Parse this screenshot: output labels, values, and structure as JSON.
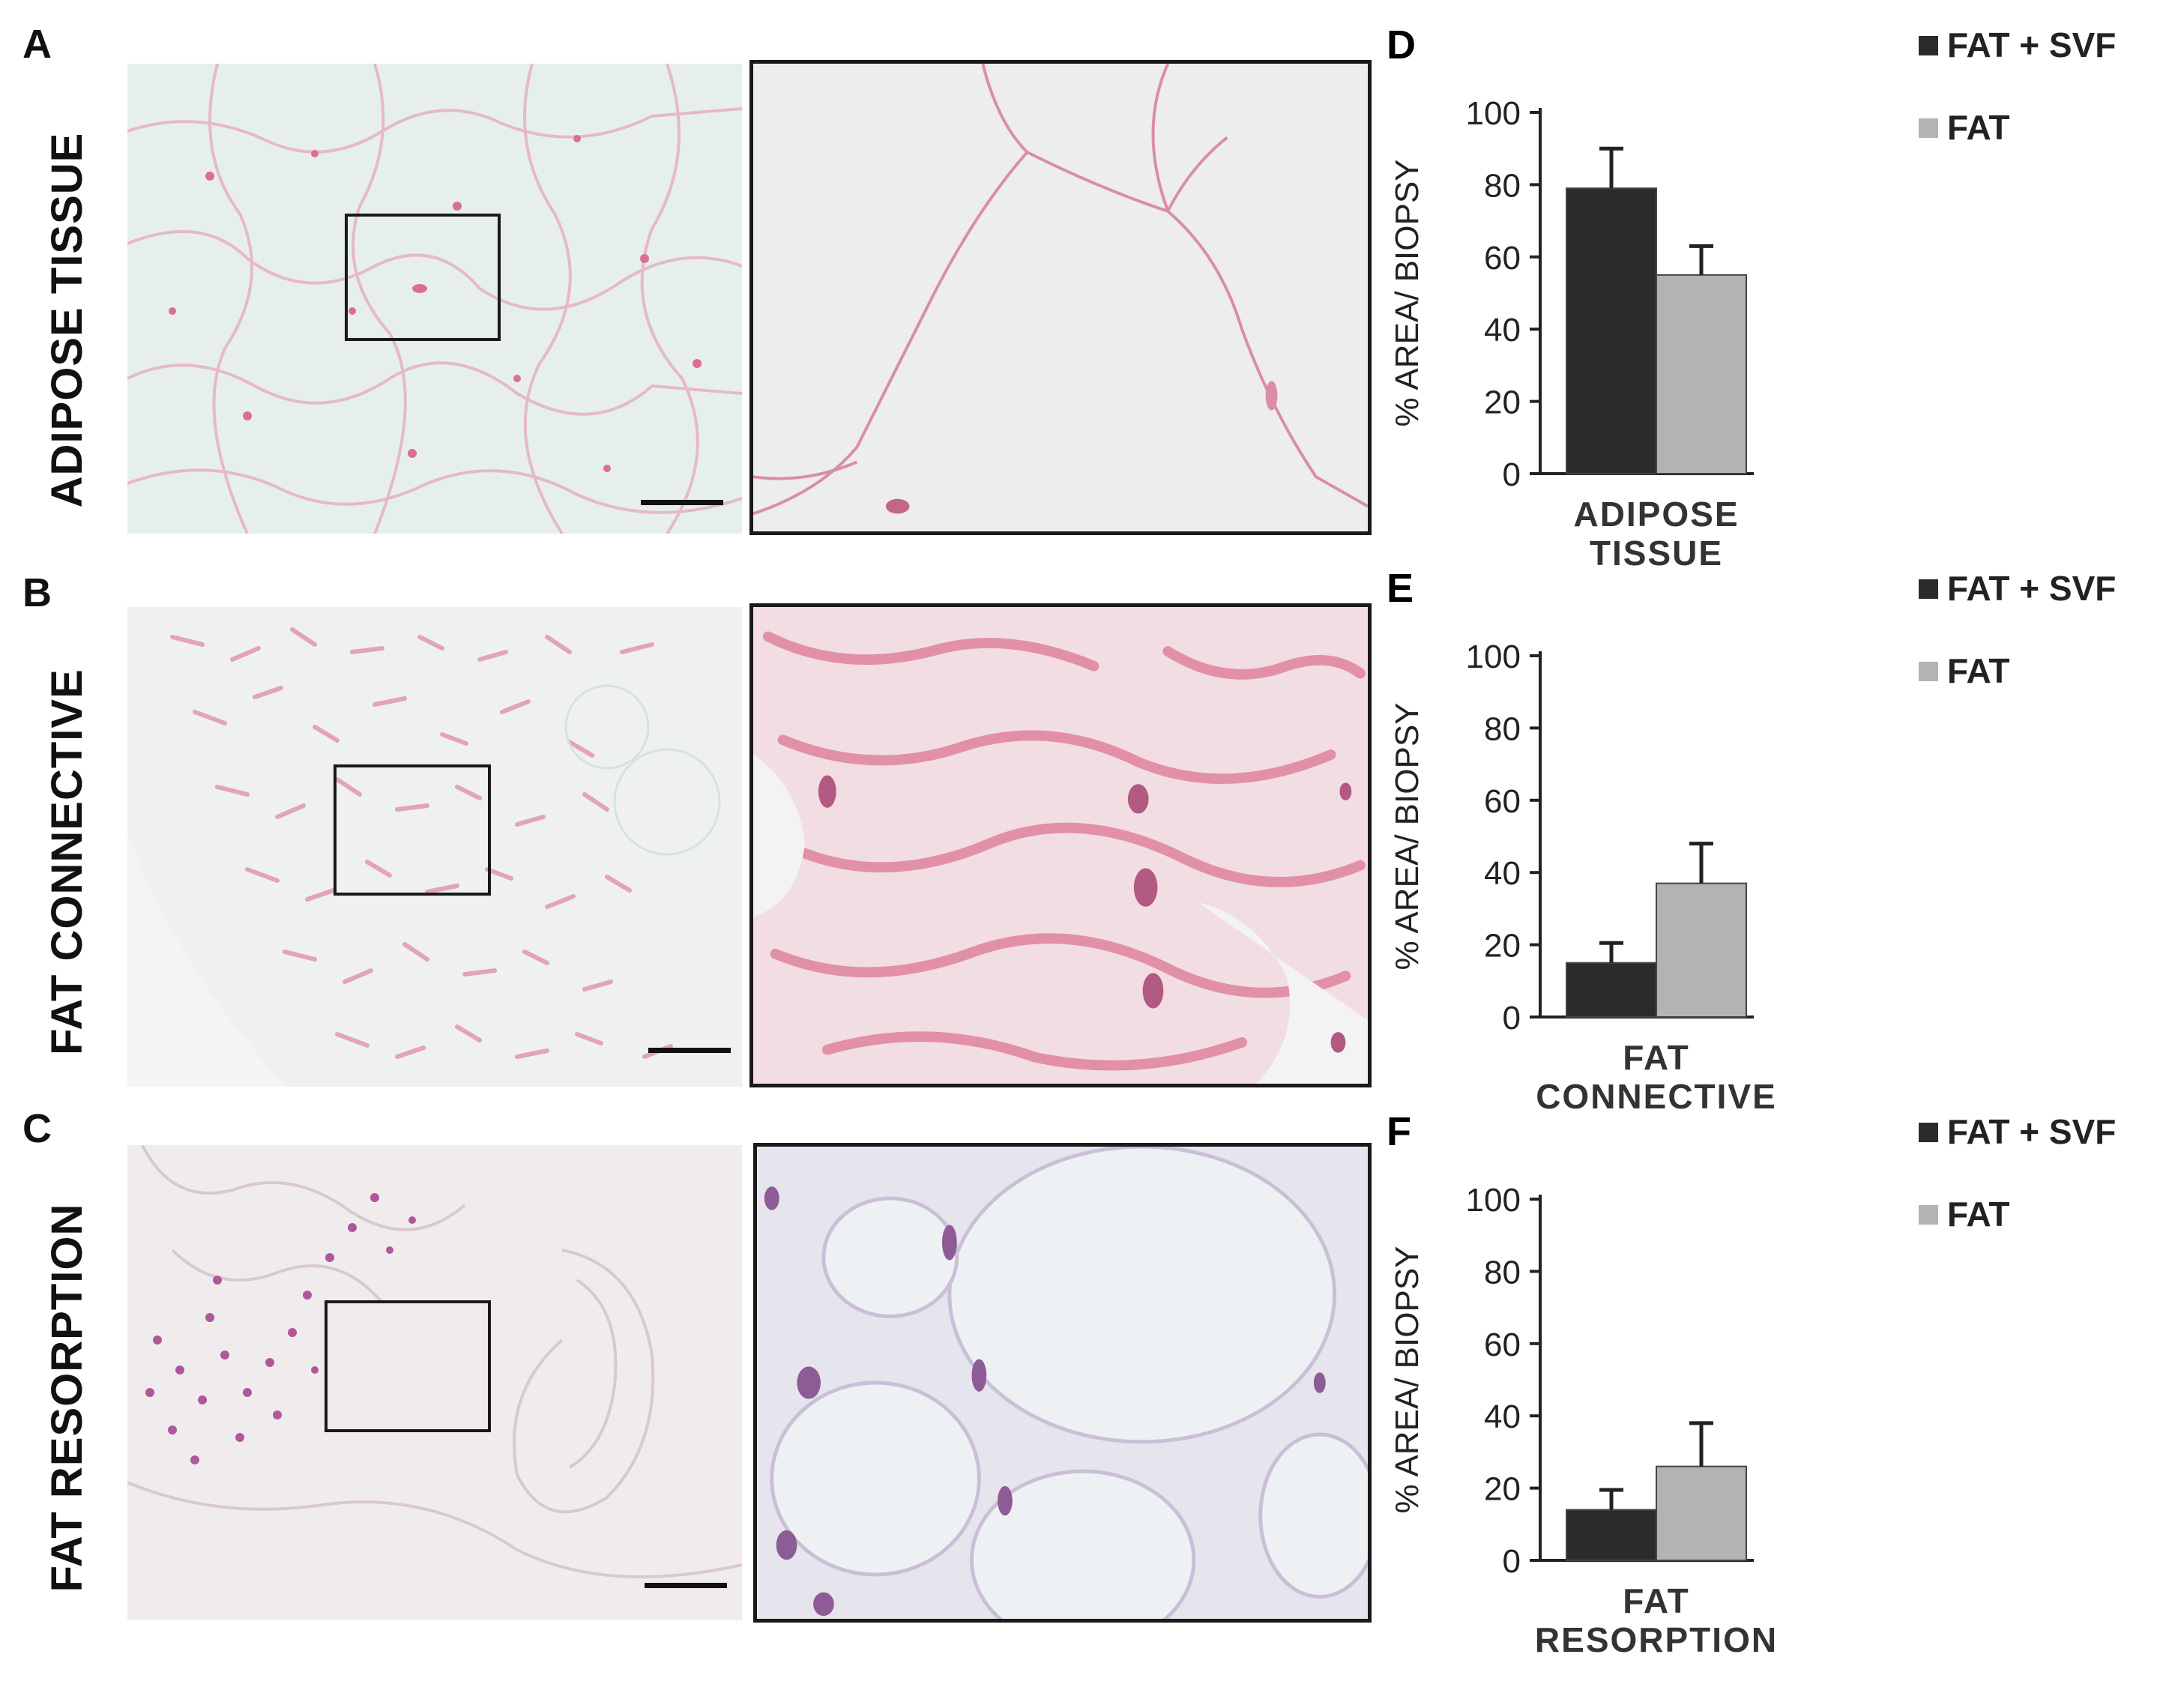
{
  "rows": [
    {
      "letter": "A",
      "label": "ADIPOSE TISSUE"
    },
    {
      "letter": "B",
      "label": "FAT CONNECTIVE"
    },
    {
      "letter": "C",
      "label": "FAT RESORPTION"
    }
  ],
  "chart_data": [
    {
      "letter": "D",
      "type": "bar",
      "categories": [
        "ADIPOSE TISSUE"
      ],
      "category_lines": [
        "ADIPOSE",
        "TISSUE"
      ],
      "series": [
        {
          "name": "FAT + SVF",
          "values": [
            79
          ],
          "errors": [
            11
          ],
          "color": "#2b2b2b"
        },
        {
          "name": "FAT",
          "values": [
            55
          ],
          "errors": [
            8
          ],
          "color": "#b3b3b3"
        }
      ],
      "ylabel": "% AREA/ BIOPSY",
      "ylim": [
        0,
        100
      ],
      "yticks": [
        "0",
        "20",
        "40",
        "60",
        "80",
        "100"
      ],
      "legend": "top-right",
      "grid": false
    },
    {
      "letter": "E",
      "type": "bar",
      "categories": [
        "FAT CONNECTIVE"
      ],
      "category_lines": [
        "FAT",
        "CONNECTIVE"
      ],
      "series": [
        {
          "name": "FAT + SVF",
          "values": [
            15
          ],
          "errors": [
            5.5
          ],
          "color": "#2b2b2b"
        },
        {
          "name": "FAT",
          "values": [
            37
          ],
          "errors": [
            11
          ],
          "color": "#b3b3b3"
        }
      ],
      "ylabel": "% AREA/ BIOPSY",
      "ylim": [
        0,
        100
      ],
      "yticks": [
        "0",
        "20",
        "40",
        "60",
        "80",
        "100"
      ],
      "legend": "top-right",
      "grid": false
    },
    {
      "letter": "F",
      "type": "bar",
      "categories": [
        "FAT RESORPTION"
      ],
      "category_lines": [
        "FAT",
        "RESORPTION"
      ],
      "series": [
        {
          "name": "FAT + SVF",
          "values": [
            14
          ],
          "errors": [
            5.5
          ],
          "color": "#2b2b2b"
        },
        {
          "name": "FAT",
          "values": [
            26
          ],
          "errors": [
            12
          ],
          "color": "#b3b3b3"
        }
      ],
      "ylabel": "% AREA/ BIOPSY",
      "ylim": [
        0,
        100
      ],
      "yticks": [
        "0",
        "20",
        "40",
        "60",
        "80",
        "100"
      ],
      "legend": "top-right",
      "grid": false
    }
  ]
}
